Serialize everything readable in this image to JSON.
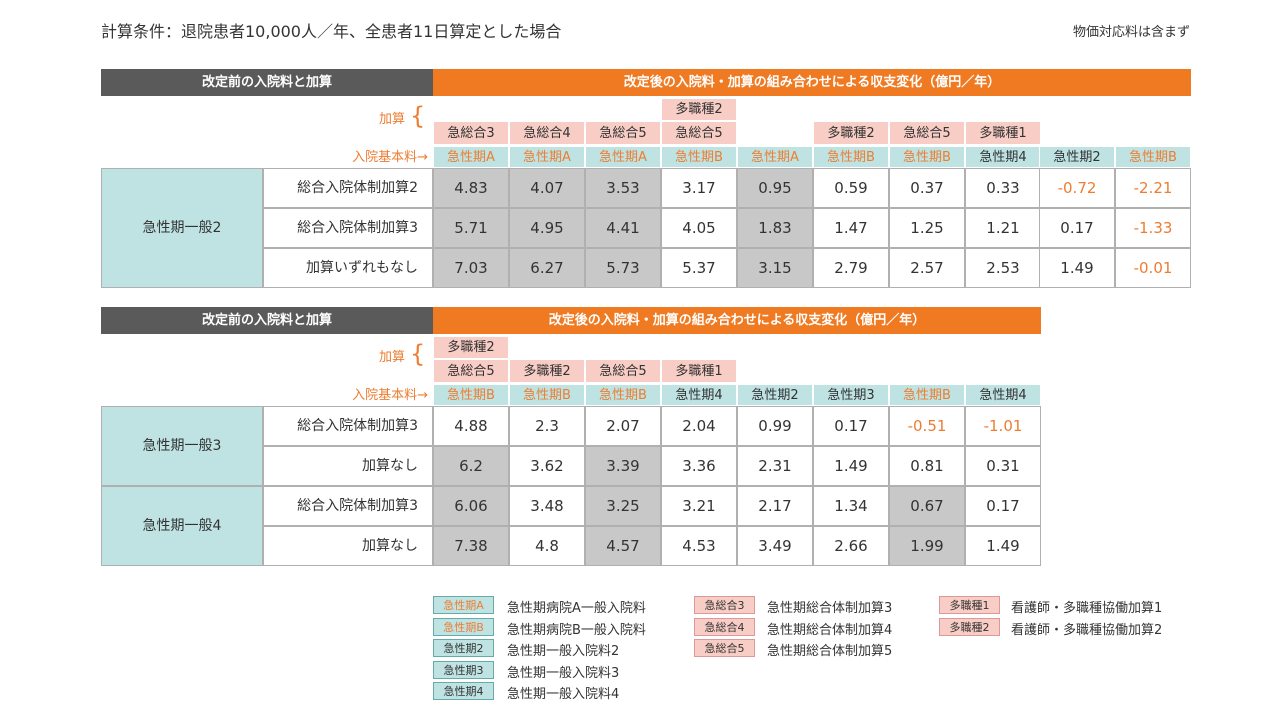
{
  "condition": "計算条件：退院患者10,000人／年、全患者11日算定とした場合",
  "note": "物価対応料は含まず",
  "side_labels": {
    "kasan": "加算",
    "base": "入院基本料→"
  },
  "table1": {
    "header_left": "改定前の入院料と加算",
    "header_right": "改定後の入院料・加算の組み合わせによる収支変化（億円／年）",
    "kasan_top": [
      "",
      "",
      "",
      "多職種2",
      "",
      "",
      "",
      "",
      "",
      ""
    ],
    "kasan_bottom": [
      "急総合3",
      "急総合4",
      "急総合5",
      "急総合5",
      "",
      "多職種2",
      "急総合5",
      "多職種1",
      "",
      ""
    ],
    "base": [
      "急性期A",
      "急性期A",
      "急性期A",
      "急性期B",
      "急性期A",
      "急性期B",
      "急性期B",
      "急性期4",
      "急性期2",
      "急性期B"
    ],
    "groups": [
      {
        "label": "急性期一般2",
        "rows": [
          {
            "label": "総合入院体制加算2",
            "values": [
              "4.83",
              "4.07",
              "3.53",
              "3.17",
              "0.95",
              "0.59",
              "0.37",
              "0.33",
              "-0.72",
              "-2.21"
            ]
          },
          {
            "label": "総合入院体制加算3",
            "values": [
              "5.71",
              "4.95",
              "4.41",
              "4.05",
              "1.83",
              "1.47",
              "1.25",
              "1.21",
              "0.17",
              "-1.33"
            ]
          },
          {
            "label": "加算いずれもなし",
            "values": [
              "7.03",
              "6.27",
              "5.73",
              "5.37",
              "3.15",
              "2.79",
              "2.57",
              "2.53",
              "1.49",
              "-0.01"
            ]
          }
        ]
      }
    ]
  },
  "table2": {
    "header_left": "改定前の入院料と加算",
    "header_right": "改定後の入院料・加算の組み合わせによる収支変化（億円／年）",
    "kasan_top": [
      "多職種2",
      "",
      "",
      "",
      "",
      "",
      "",
      ""
    ],
    "kasan_bottom": [
      "急総合5",
      "多職種2",
      "急総合5",
      "多職種1",
      "",
      "",
      "",
      ""
    ],
    "base": [
      "急性期B",
      "急性期B",
      "急性期B",
      "急性期4",
      "急性期2",
      "急性期3",
      "急性期B",
      "急性期4"
    ],
    "groups": [
      {
        "label": "急性期一般3",
        "rows": [
          {
            "label": "総合入院体制加算3",
            "values": [
              "4.88",
              "2.3",
              "2.07",
              "2.04",
              "0.99",
              "0.17",
              "-0.51",
              "-1.01"
            ]
          },
          {
            "label": "加算なし",
            "values": [
              "6.2",
              "3.62",
              "3.39",
              "3.36",
              "2.31",
              "1.49",
              "0.81",
              "0.31"
            ]
          }
        ]
      },
      {
        "label": "急性期一般4",
        "rows": [
          {
            "label": "総合入院体制加算3",
            "values": [
              "6.06",
              "3.48",
              "3.25",
              "3.21",
              "2.17",
              "1.34",
              "0.67",
              "0.17"
            ]
          },
          {
            "label": "加算なし",
            "values": [
              "7.38",
              "4.8",
              "4.57",
              "4.53",
              "3.49",
              "2.66",
              "1.99",
              "1.49"
            ]
          }
        ]
      }
    ]
  },
  "legend": {
    "col1": [
      {
        "code": "急性期A",
        "text": "急性期病院A一般入院料"
      },
      {
        "code": "急性期B",
        "text": "急性期病院B一般入院料"
      },
      {
        "code": "急性期2",
        "text": "急性期一般入院料2"
      },
      {
        "code": "急性期3",
        "text": "急性期一般入院料3"
      },
      {
        "code": "急性期4",
        "text": "急性期一般入院料4"
      }
    ],
    "col2": [
      {
        "code": "急総合3",
        "text": "急性期総合体制加算3"
      },
      {
        "code": "急総合4",
        "text": "急性期総合体制加算4"
      },
      {
        "code": "急総合5",
        "text": "急性期総合体制加算5"
      }
    ],
    "col3": [
      {
        "code": "多職種1",
        "text": "看護師・多職種協働加算1"
      },
      {
        "code": "多職種2",
        "text": "看護師・多職種協働加算2"
      }
    ]
  },
  "colors": {
    "orange": "#f07a22",
    "orange_text": "#ed7d31",
    "dark_header": "#5a5a5a",
    "teal": "#bfe3e3",
    "pink": "#f7cdc5",
    "gray_cell": "#c8c8c8"
  }
}
